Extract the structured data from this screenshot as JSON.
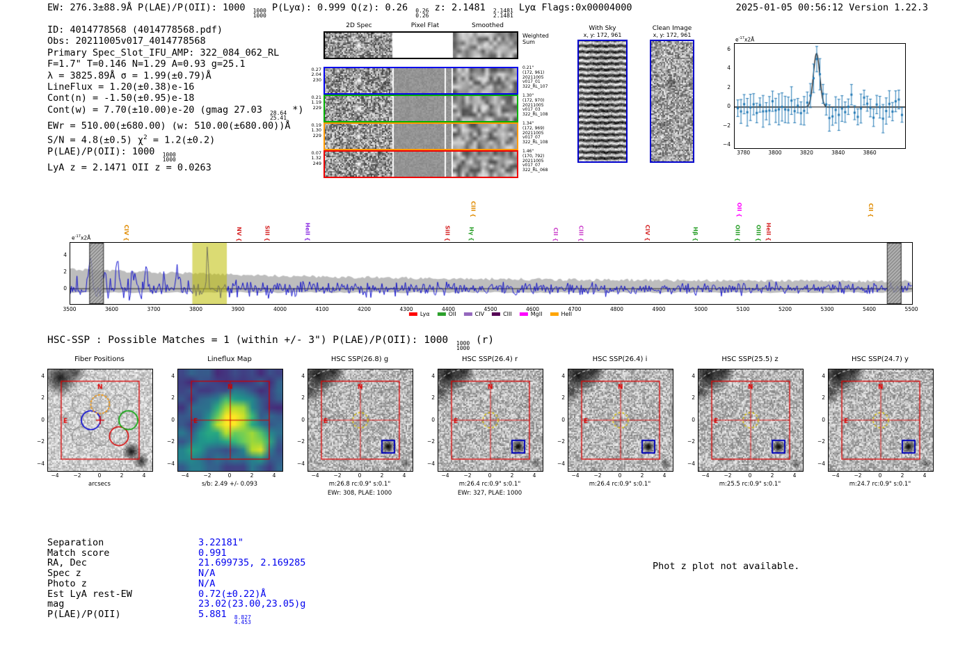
{
  "header": {
    "left_segments": [
      {
        "t": "EW: 276.3±88.9Å  P(LAE)/P(OII): 1000 "
      },
      {
        "frac": [
          "1000",
          "1000"
        ]
      },
      {
        "t": "  P(Lyα): 0.999  Q(z): 0.26 "
      },
      {
        "frac": [
          "0.26",
          "0.26"
        ]
      },
      {
        "t": "  z: 2.1481 "
      },
      {
        "frac": [
          "2.1481",
          "2.1481"
        ]
      },
      {
        "t": " Lyα  Flags:0x00004000"
      }
    ],
    "right": "2025-01-05 00:56:12  Version 1.22.3"
  },
  "info_lines": [
    [
      {
        "t": "ID: 4014778568 (4014778568.pdf)"
      }
    ],
    [
      {
        "t": "Obs: 20211005v017_4014778568"
      }
    ],
    [
      {
        "t": "Primary Spec_Slot_IFU_AMP: 322_084_062_RL"
      }
    ],
    [
      {
        "t": "F=1.7\"  T=0.146  N=1.29  A=0.93  g=25.1"
      }
    ],
    [
      {
        "t": "λ = 3825.89Å  σ = 1.99(±0.79)Å"
      }
    ],
    [
      {
        "t": "LineFlux = 1.20(±0.38)e-16"
      }
    ],
    [
      {
        "t": "Cont(n) = -1.50(±0.95)e-18"
      }
    ],
    [
      {
        "t": "Cont(w) = 7.70(±10.00)e-20 (gmag 27.03 "
      },
      {
        "frac": [
          "28.64",
          "25.41"
        ]
      },
      {
        "t": " *)"
      }
    ],
    [
      {
        "t": "EWr = 510.00(±680.00) (w: 510.00(±680.00))Å"
      }
    ],
    [
      {
        "t": "S/N = 4.8(±0.5)  χ"
      },
      {
        "sup": "2"
      },
      {
        "t": " = 1.2(±0.2)"
      }
    ],
    [
      {
        "t": "P(LAE)/P(OII): 1000 "
      },
      {
        "frac": [
          "1000",
          "1000"
        ]
      }
    ],
    [
      {
        "t": "LyA z = 2.1471  OII z = 0.0263"
      }
    ]
  ],
  "spec2d": {
    "col_headers": [
      "2D Spec",
      "Pixel Flat",
      "Smoothed"
    ],
    "weighted_sum_label": [
      "Weighted",
      "Sum"
    ],
    "rows": [
      {
        "border": "#0000ee",
        "left": [
          "0.27",
          "2.04",
          "230"
        ],
        "right": [
          "0.21\"",
          "(172, 961)",
          "20211005",
          "v017_01",
          "322_RL_107"
        ]
      },
      {
        "border": "#00b000",
        "left": [
          "0.21",
          "1.19",
          "229"
        ],
        "right": [
          "1.30\"",
          "(172, 970)",
          "20211005",
          "v017_03",
          "322_RL_108"
        ]
      },
      {
        "border": "#ff9900",
        "left": [
          "0.19",
          "1.30",
          "229"
        ],
        "right": [
          "1.34\"",
          "(172, 969)",
          "20211005",
          "v017_07",
          "322_RL_108"
        ]
      },
      {
        "border": "#ee0000",
        "left": [
          "0.07",
          "1.32",
          "249"
        ],
        "right": [
          "1.46\"",
          "(170, 792)",
          "20211005",
          "v017_07",
          "322_RL_068"
        ]
      }
    ]
  },
  "cutouts2d": {
    "with_sky": {
      "title": "With Sky",
      "subtitle": "x, y: 172, 961"
    },
    "clean": {
      "title": "Clean Image",
      "subtitle": "x, y: 172, 961"
    }
  },
  "hsc_line_segments": [
    {
      "t": "HSC-SSP : Possible Matches = 1 (within +/- 3\")  P(LAE)/P(OII): 1000 "
    },
    {
      "frac": [
        "1000",
        "1000"
      ]
    },
    {
      "t": " (r)"
    }
  ],
  "panels_meta": {
    "axis_ticks": [
      -4,
      -2,
      0,
      2,
      4
    ]
  },
  "panels": [
    {
      "title": "Fiber Positions",
      "type": "fiber",
      "captions": [
        "arcsecs"
      ]
    },
    {
      "title": "Lineflux Map",
      "type": "lineflux",
      "captions": [
        "s/b: 2.49 +/- 0.093"
      ]
    },
    {
      "title": "HSC SSP(26.8) g",
      "type": "hsc",
      "captions": [
        "m:26.8 rc:0.9\" s:0.1\"",
        "EWr: 308, PLAE: 1000"
      ]
    },
    {
      "title": "HSC SSP(26.4) r",
      "type": "hsc",
      "captions": [
        "m:26.4 rc:0.9\" s:0.1\"",
        "EWr: 327, PLAE: 1000"
      ]
    },
    {
      "title": "HSC SSP(26.4) i",
      "type": "hsc",
      "captions": [
        "m:26.4 rc:0.9\" s:0.1\""
      ]
    },
    {
      "title": "HSC SSP(25.5) z",
      "type": "hsc",
      "captions": [
        "m:25.5 rc:0.9\" s:0.1\""
      ]
    },
    {
      "title": "HSC SSP(24.7) y",
      "type": "hsc",
      "captions": [
        "m:24.7 rc:0.9\" s:0.1\""
      ]
    }
  ],
  "match_table": {
    "rows": [
      {
        "label": "Separation",
        "segments": [
          {
            "t": "3.22181\""
          }
        ]
      },
      {
        "label": "Match score",
        "segments": [
          {
            "t": "0.991"
          }
        ]
      },
      {
        "label": "RA, Dec",
        "segments": [
          {
            "t": "21.699735, 2.169285"
          }
        ]
      },
      {
        "label": "Spec z",
        "segments": [
          {
            "t": "N/A"
          }
        ]
      },
      {
        "label": "Photo z",
        "segments": [
          {
            "t": "N/A"
          }
        ]
      },
      {
        "label": "Est LyA rest-EW",
        "segments": [
          {
            "t": "0.72(±0.22)Å"
          }
        ]
      },
      {
        "label": "mag",
        "segments": [
          {
            "t": "23.02(23.00,23.05)g"
          }
        ]
      },
      {
        "label": "P(LAE)/P(OII)",
        "segments": [
          {
            "t": "5.881 "
          },
          {
            "frac": [
              "8.827",
              "4.453"
            ]
          }
        ]
      }
    ]
  },
  "photz_note": "Phot z plot not available.",
  "chart_data": [
    {
      "id": "line-fit-zoom",
      "type": "scatter",
      "ylabel": "e-17x2Å",
      "xlim": [
        3774,
        3882
      ],
      "xticks": [
        3780,
        3800,
        3820,
        3840,
        3860
      ],
      "ylim": [
        -4.3,
        6.6
      ],
      "yticks": [
        -4,
        -2,
        0,
        2,
        4,
        6
      ],
      "fit": {
        "center": 3825.89,
        "sigma": 1.99,
        "amplitude": 5.6
      },
      "point_spacing": 2,
      "noise_sigma": 1.25
    },
    {
      "id": "full-spectrum",
      "type": "line",
      "ylabel": "e-17x2Å",
      "xlim": [
        3500,
        5500
      ],
      "xticks": [
        3500,
        3600,
        3700,
        3800,
        3900,
        4000,
        4100,
        4200,
        4300,
        4400,
        4500,
        4600,
        4700,
        4800,
        4900,
        5000,
        5100,
        5200,
        5300,
        5400,
        5500
      ],
      "ylim": [
        -1.83,
        5.5
      ],
      "yticks": [
        0,
        2,
        4
      ],
      "emission_peak": {
        "wavelength": 3825.89,
        "amplitude": 4.8,
        "sigma": 2.0
      },
      "highlight_band": [
        3790,
        3872
      ],
      "masked_regions": [
        [
          3546,
          3579
        ],
        [
          5441,
          5474
        ]
      ],
      "extra_spikes": [
        [
          3548,
          4.3
        ],
        [
          3582,
          2.4
        ],
        [
          3611,
          3.3
        ],
        [
          3648,
          2.2
        ],
        [
          3681,
          2.8
        ],
        [
          3722,
          2.0
        ],
        [
          3755,
          2.5
        ]
      ],
      "line_labels": [
        {
          "wavelength": 3637,
          "label": "CIV",
          "color": "#e08b00",
          "tier": 0
        },
        {
          "wavelength": 3905,
          "label": "NV",
          "color": "#d62728",
          "tier": 0
        },
        {
          "wavelength": 3972,
          "label": "SiII",
          "color": "#d62728",
          "tier": 0
        },
        {
          "wavelength": 4068,
          "label": "HeII",
          "color": "#8a2be2",
          "tier": 0
        },
        {
          "wavelength": 4400,
          "label": "SiII",
          "color": "#d62728",
          "tier": 0
        },
        {
          "wavelength": 4457,
          "label": "Hγ",
          "color": "#2ca02c",
          "tier": 0
        },
        {
          "wavelength": 4461,
          "label": "CIII",
          "color": "#e08b00",
          "tier": 1
        },
        {
          "wavelength": 4657,
          "label": "CII",
          "color": "#cc44cc",
          "tier": 0
        },
        {
          "wavelength": 4717,
          "label": "CIII",
          "color": "#cc44cc",
          "tier": 0
        },
        {
          "wavelength": 4875,
          "label": "CIV",
          "color": "#d62728",
          "tier": 0
        },
        {
          "wavelength": 4989,
          "label": "Hβ",
          "color": "#2ca02c",
          "tier": 0
        },
        {
          "wavelength": 5089,
          "label": "OIII",
          "color": "#2ca02c",
          "tier": 0
        },
        {
          "wavelength": 5093,
          "label": "OII",
          "color": "#ff00ff",
          "tier": 1
        },
        {
          "wavelength": 5139,
          "label": "OIII",
          "color": "#2ca02c",
          "tier": 0
        },
        {
          "wavelength": 5163,
          "label": "HeII",
          "color": "#d62728",
          "tier": 0
        },
        {
          "wavelength": 5406,
          "label": "CII",
          "color": "#e08b00",
          "tier": 1
        }
      ],
      "legend": [
        {
          "label": "Lyα",
          "color": "#ff0000"
        },
        {
          "label": "OII",
          "color": "#2ca02c"
        },
        {
          "label": "CIV",
          "color": "#9467bd"
        },
        {
          "label": "CIII",
          "color": "#550055"
        },
        {
          "label": "MgII",
          "color": "#ff00ff"
        },
        {
          "label": "HeII",
          "color": "#ffa500"
        }
      ]
    }
  ]
}
